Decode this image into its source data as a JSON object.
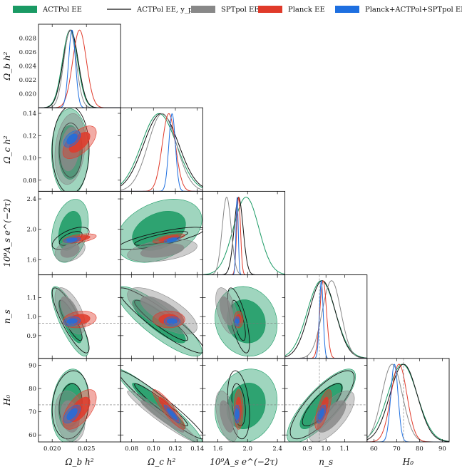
{
  "chart_data": {
    "type": "corner",
    "parameters": [
      {
        "label": "Ω_b h²",
        "range": [
          0.018,
          0.03
        ],
        "ticks": [
          0.02,
          0.022,
          0.024,
          0.026,
          0.028
        ],
        "bottom_ticks": [
          0.02,
          0.025
        ],
        "tick_format_left": "0.000",
        "tick_format_bottom": "0.000"
      },
      {
        "label": "Ω_c h²",
        "range": [
          0.07,
          0.145
        ],
        "ticks": [
          0.08,
          0.1,
          0.12,
          0.14
        ],
        "bottom_ticks": [
          0.08,
          0.1,
          0.12,
          0.14
        ],
        "tick_format_left": "0.00",
        "tick_format_bottom": "0.00"
      },
      {
        "label": "10⁹A_s e^(−2τ)",
        "range": [
          1.4,
          2.5
        ],
        "ticks": [
          1.6,
          2.0,
          2.4
        ],
        "bottom_ticks": [
          1.6,
          2.0,
          2.4
        ],
        "tick_format_left": "0.0",
        "tick_format_bottom": "0.0"
      },
      {
        "label": "n_s",
        "range": [
          0.78,
          1.22
        ],
        "ticks": [
          0.9,
          1.0,
          1.1
        ],
        "bottom_ticks": [
          0.9,
          1.0,
          1.1
        ],
        "tick_format_left": "0.0",
        "tick_format_bottom": "0.0"
      },
      {
        "label": "H₀",
        "range": [
          57,
          93
        ],
        "ticks": [
          60,
          70,
          80,
          90
        ],
        "bottom_ticks": [
          60,
          70,
          80,
          90
        ],
        "tick_format_left": "0",
        "tick_format_bottom": "0"
      }
    ],
    "reference_lines": {
      "n_s": 0.9649,
      "H0": 73.0
    },
    "series": [
      {
        "name": "ACTPol EE",
        "color": "#1a9a64",
        "style": "filled",
        "mean": [
          0.0226,
          0.105,
          1.98,
          0.975,
          72.5
        ],
        "sigma": [
          0.0011,
          0.016,
          0.17,
          0.075,
          6.5
        ]
      },
      {
        "name": "ACTPol EE, y_p = 1",
        "color": "#111111",
        "style": "line",
        "mean": [
          0.0227,
          0.107,
          1.88,
          0.98,
          73.0
        ],
        "sigma": [
          0.0011,
          0.016,
          0.06,
          0.07,
          6.0
        ]
      },
      {
        "name": "SPTpol EE",
        "color": "#888888",
        "style": "filled",
        "mean": [
          0.0226,
          0.108,
          1.72,
          1.03,
          68.0
        ],
        "sigma": [
          0.0009,
          0.013,
          0.06,
          0.05,
          4.5
        ]
      },
      {
        "name": "Planck EE",
        "color": "#e03a2a",
        "style": "filled",
        "mean": [
          0.024,
          0.114,
          1.88,
          0.985,
          71.0
        ],
        "sigma": [
          0.001,
          0.006,
          0.025,
          0.018,
          3.5
        ]
      },
      {
        "name": "Planck+ACTPol+SPTpol EE",
        "color": "#1e6fe0",
        "style": "filled",
        "mean": [
          0.0229,
          0.117,
          1.86,
          0.975,
          69.0
        ],
        "sigma": [
          0.0005,
          0.003,
          0.015,
          0.01,
          1.6
        ]
      }
    ],
    "legend": [
      {
        "text": "ACTPol EE"
      },
      {
        "text": "ACTPol EE, y_p = 1"
      },
      {
        "text": "SPTpol EE"
      },
      {
        "text": "Planck EE"
      },
      {
        "text": "Planck+ACTPol+SPTpol EE"
      }
    ]
  }
}
